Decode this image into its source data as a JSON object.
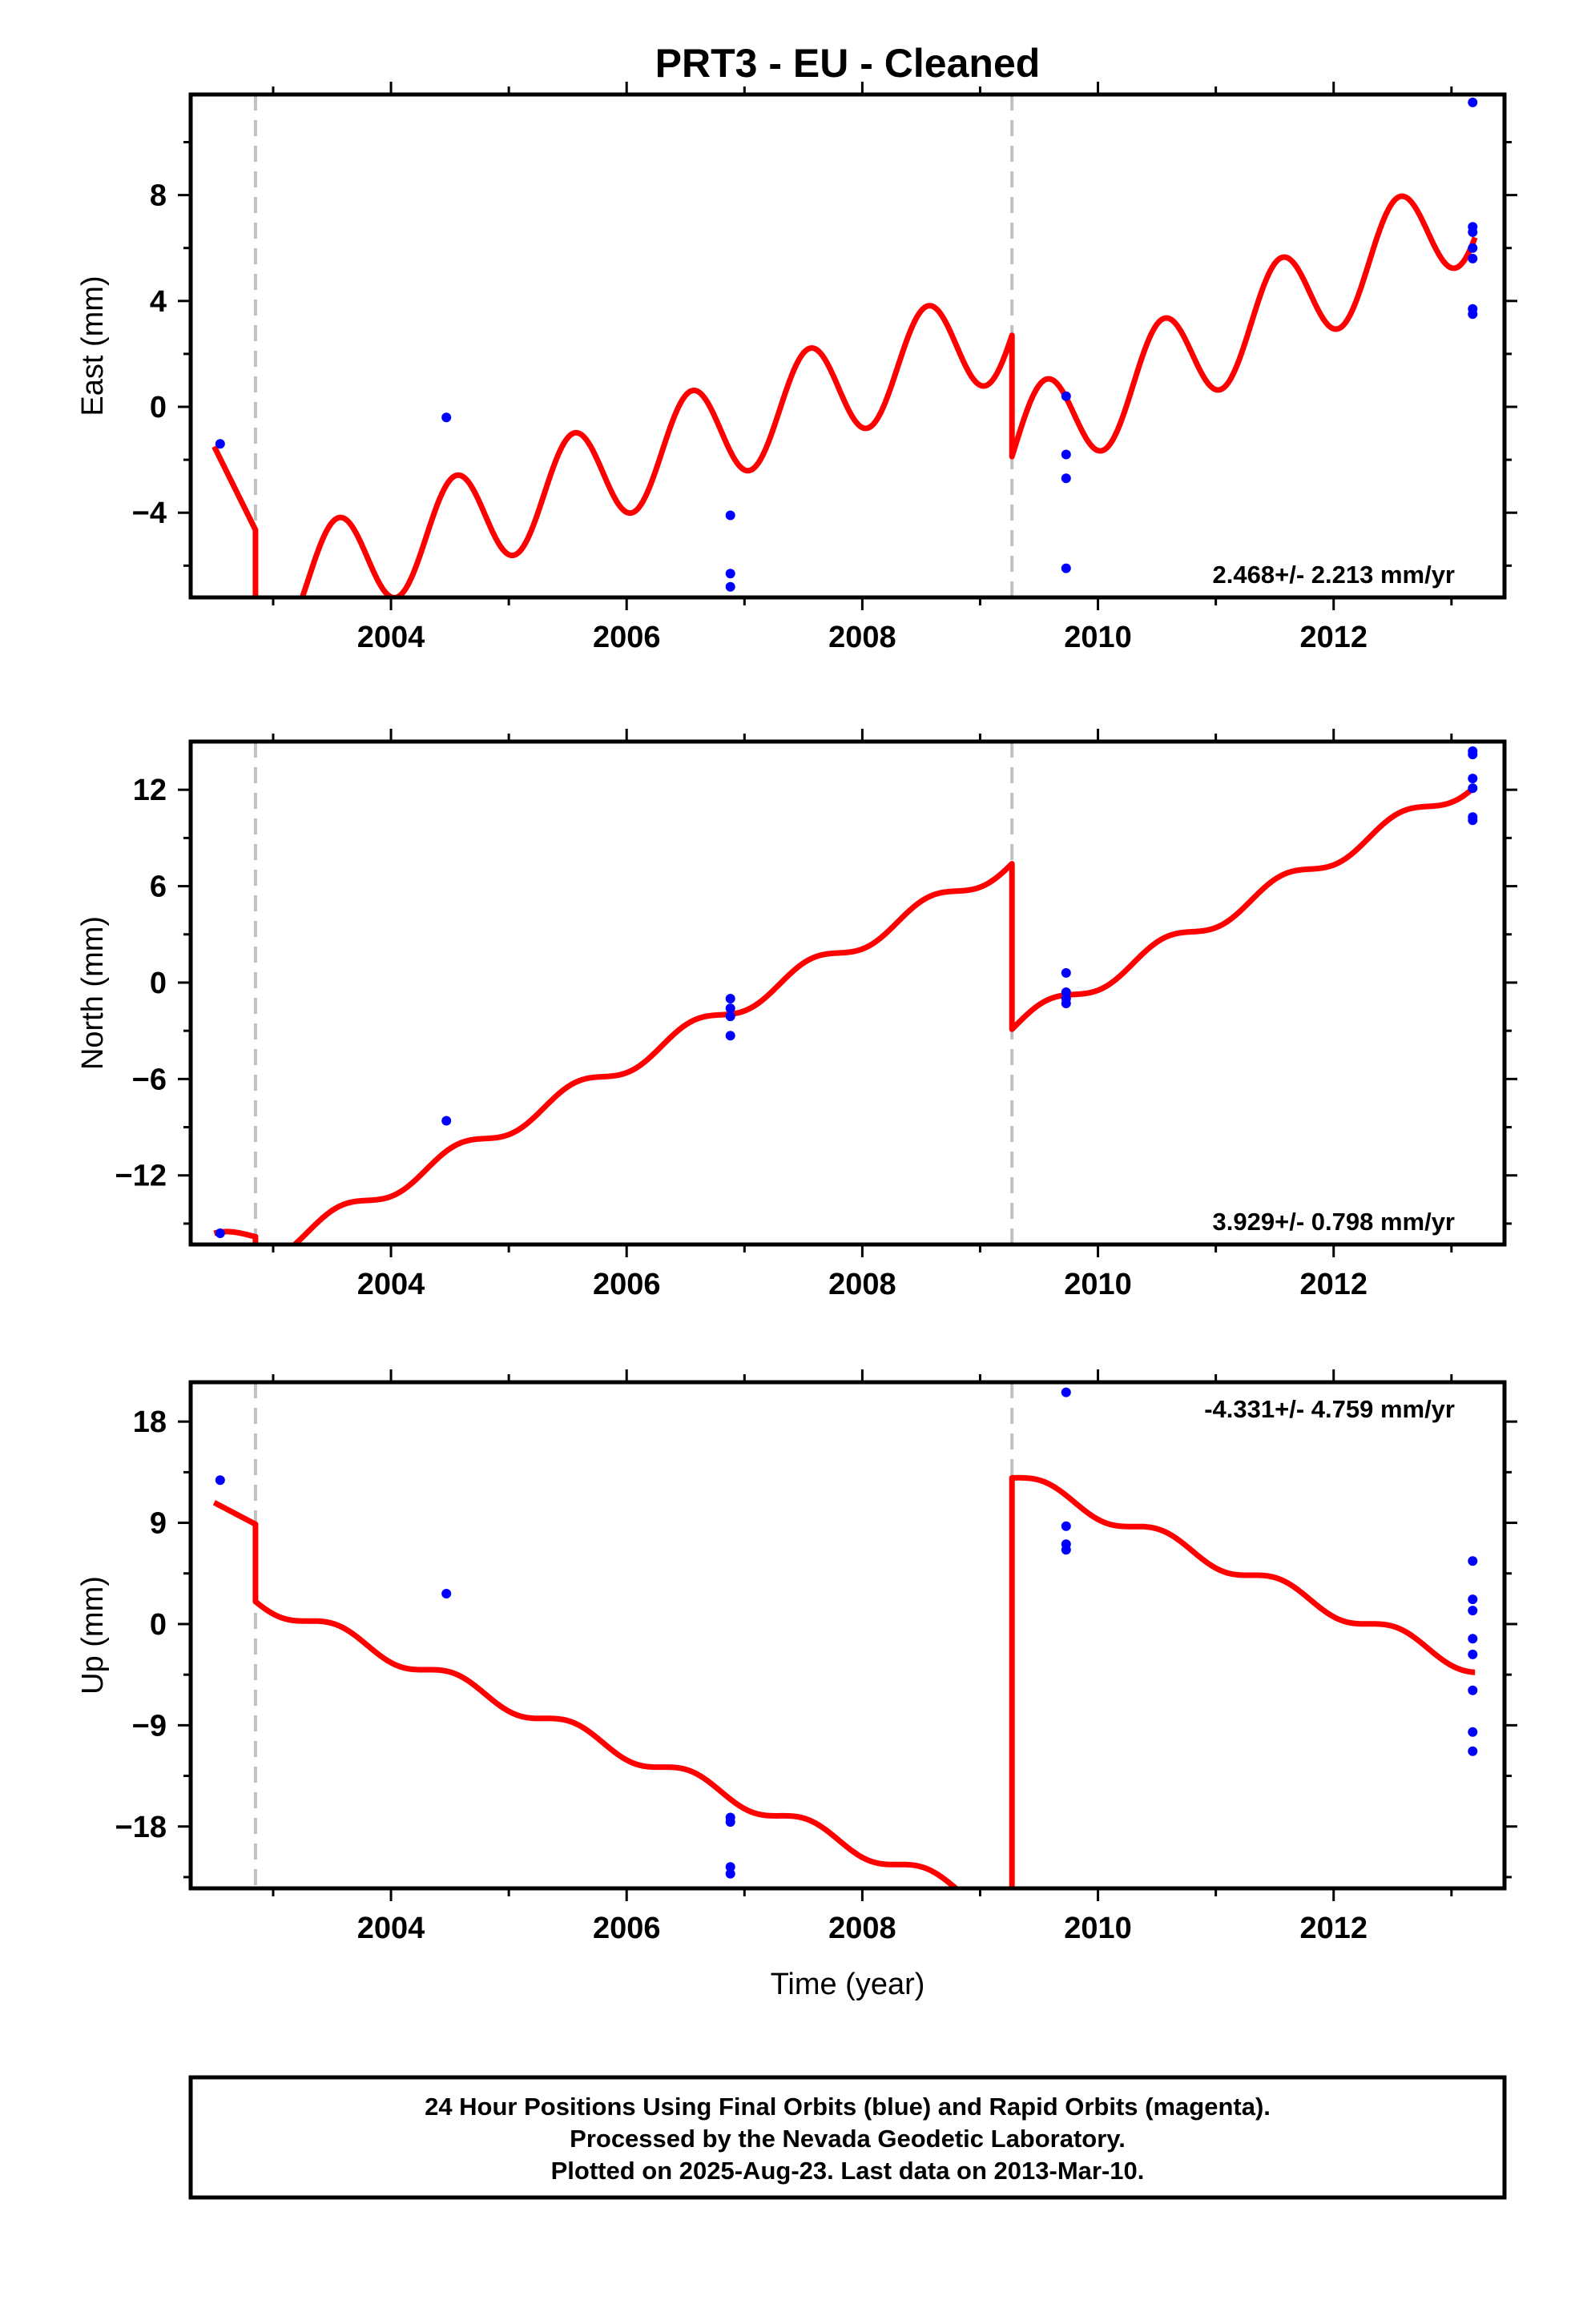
{
  "title": "PRT3  - EU - Cleaned",
  "xlabel": "Time (year)",
  "colors": {
    "model": "#ff0000",
    "points": "#0000ff",
    "breaks": "#c0c0c0",
    "frame": "#000000"
  },
  "footer": {
    "line1": "24 Hour Positions Using Final Orbits (blue) and Rapid Orbits (magenta).",
    "line2": "Processed by the Nevada Geodetic Laboratory.",
    "line3": "Plotted on 2025-Aug-23. Last data on 2013-Mar-10."
  },
  "chart_data": [
    {
      "type": "line",
      "ylabel": "East (mm)",
      "xlim": [
        2002.3,
        2013.45
      ],
      "ylim": [
        -7.2,
        11.8
      ],
      "xticks": [
        2004,
        2006,
        2008,
        2010,
        2012
      ],
      "yticks": [
        -4,
        0,
        4,
        8
      ],
      "ytick_labels": [
        "−4",
        "0",
        "4",
        "8"
      ],
      "rate": "2.468+/- 2.213 mm/yr",
      "rate_position": "bottom-right",
      "breaks": [
        2002.85,
        2009.27
      ],
      "model": {
        "segments": [
          {
            "start": 2002.5,
            "end": 2002.85,
            "value_at_start": -1.5,
            "slope": -9.0,
            "amplitude": 0.0
          },
          {
            "start": 2002.85,
            "end": 2009.27,
            "value_at_end": 2.7,
            "slope": 1.6,
            "amplitude": 1.9,
            "phase": 2002.3
          },
          {
            "start": 2009.27,
            "end": 2013.2,
            "value_at_end": 6.4,
            "slope": 2.3,
            "amplitude": 1.9,
            "phase": 2002.3
          }
        ]
      },
      "points": [
        {
          "x": 2002.55,
          "y": -1.4
        },
        {
          "x": 2004.47,
          "y": -0.4
        },
        {
          "x": 2006.88,
          "y": -4.1
        },
        {
          "x": 2006.88,
          "y": -6.3
        },
        {
          "x": 2006.88,
          "y": -6.8
        },
        {
          "x": 2009.73,
          "y": 0.4
        },
        {
          "x": 2009.73,
          "y": -1.8
        },
        {
          "x": 2009.73,
          "y": -2.7
        },
        {
          "x": 2009.73,
          "y": -6.1
        },
        {
          "x": 2013.18,
          "y": 11.5
        },
        {
          "x": 2013.18,
          "y": 6.8
        },
        {
          "x": 2013.18,
          "y": 6.6
        },
        {
          "x": 2013.18,
          "y": 6.0
        },
        {
          "x": 2013.18,
          "y": 5.6
        },
        {
          "x": 2013.18,
          "y": 3.7
        },
        {
          "x": 2013.18,
          "y": 3.5
        }
      ]
    },
    {
      "type": "line",
      "ylabel": "North (mm)",
      "xlim": [
        2002.3,
        2013.45
      ],
      "ylim": [
        -16.3,
        15.0
      ],
      "xticks": [
        2004,
        2006,
        2008,
        2010,
        2012
      ],
      "yticks": [
        -12,
        -6,
        0,
        6,
        12
      ],
      "ytick_labels": [
        "−12",
        "−6",
        "0",
        "6",
        "12"
      ],
      "rate": "3.929+/- 0.798 mm/yr",
      "rate_position": "bottom-right",
      "breaks": [
        2002.85,
        2009.27
      ],
      "model": {
        "segments": [
          {
            "start": 2002.5,
            "end": 2002.85,
            "value_at_start": -15.6,
            "slope": 1.0,
            "amplitude": 0.45,
            "phase": 2002.3
          },
          {
            "start": 2002.85,
            "end": 2009.27,
            "value_at_end": 7.4,
            "slope": 3.85,
            "amplitude": 0.55,
            "phase": 2002.3
          },
          {
            "start": 2009.27,
            "end": 2013.2,
            "value_at_end": 12.2,
            "slope": 3.9,
            "amplitude": 0.55,
            "phase": 2002.3
          }
        ]
      },
      "points": [
        {
          "x": 2002.55,
          "y": -15.6
        },
        {
          "x": 2004.47,
          "y": -8.6
        },
        {
          "x": 2006.88,
          "y": -1.0
        },
        {
          "x": 2006.88,
          "y": -1.6
        },
        {
          "x": 2006.88,
          "y": -2.1
        },
        {
          "x": 2006.88,
          "y": -3.3
        },
        {
          "x": 2009.73,
          "y": 0.6
        },
        {
          "x": 2009.73,
          "y": -0.6
        },
        {
          "x": 2009.73,
          "y": -1.0
        },
        {
          "x": 2009.73,
          "y": -1.3
        },
        {
          "x": 2013.18,
          "y": 14.4
        },
        {
          "x": 2013.18,
          "y": 14.2
        },
        {
          "x": 2013.18,
          "y": 12.7
        },
        {
          "x": 2013.18,
          "y": 12.1
        },
        {
          "x": 2013.18,
          "y": 10.3
        },
        {
          "x": 2013.18,
          "y": 10.1
        }
      ]
    },
    {
      "type": "line",
      "ylabel": "Up (mm)",
      "xlim": [
        2002.3,
        2013.45
      ],
      "ylim": [
        -23.5,
        21.5
      ],
      "xticks": [
        2004,
        2006,
        2008,
        2010,
        2012
      ],
      "yticks": [
        -18,
        -9,
        0,
        9,
        18
      ],
      "ytick_labels": [
        "−18",
        "−9",
        "0",
        "9",
        "18"
      ],
      "rate": "-4.331+/- 4.759 mm/yr",
      "rate_position": "top-right",
      "breaks": [
        2002.85,
        2009.27
      ],
      "model": {
        "segments": [
          {
            "start": 2002.5,
            "end": 2002.85,
            "value_at_start": 10.8,
            "slope": -5.5,
            "amplitude": 0.0
          },
          {
            "start": 2002.85,
            "end": 2009.27,
            "value_at_start": 2.0,
            "slope": -4.33,
            "amplitude": 0.7,
            "phase": 2002.3
          },
          {
            "start": 2009.27,
            "end": 2013.2,
            "value_at_start": 13.0,
            "slope": -4.33,
            "amplitude": 0.7,
            "phase": 2002.3
          }
        ]
      },
      "points": [
        {
          "x": 2002.55,
          "y": 12.8
        },
        {
          "x": 2004.47,
          "y": 2.7
        },
        {
          "x": 2006.88,
          "y": -17.2
        },
        {
          "x": 2006.88,
          "y": -17.6
        },
        {
          "x": 2006.88,
          "y": -21.6
        },
        {
          "x": 2006.88,
          "y": -22.2
        },
        {
          "x": 2009.73,
          "y": 20.6
        },
        {
          "x": 2009.73,
          "y": 8.7
        },
        {
          "x": 2009.73,
          "y": 7.1
        },
        {
          "x": 2009.73,
          "y": 6.6
        },
        {
          "x": 2013.18,
          "y": 5.6
        },
        {
          "x": 2013.18,
          "y": 2.2
        },
        {
          "x": 2013.18,
          "y": 1.2
        },
        {
          "x": 2013.18,
          "y": -1.3
        },
        {
          "x": 2013.18,
          "y": -2.7
        },
        {
          "x": 2013.18,
          "y": -5.9
        },
        {
          "x": 2013.18,
          "y": -9.6
        },
        {
          "x": 2013.18,
          "y": -11.3
        }
      ]
    }
  ]
}
